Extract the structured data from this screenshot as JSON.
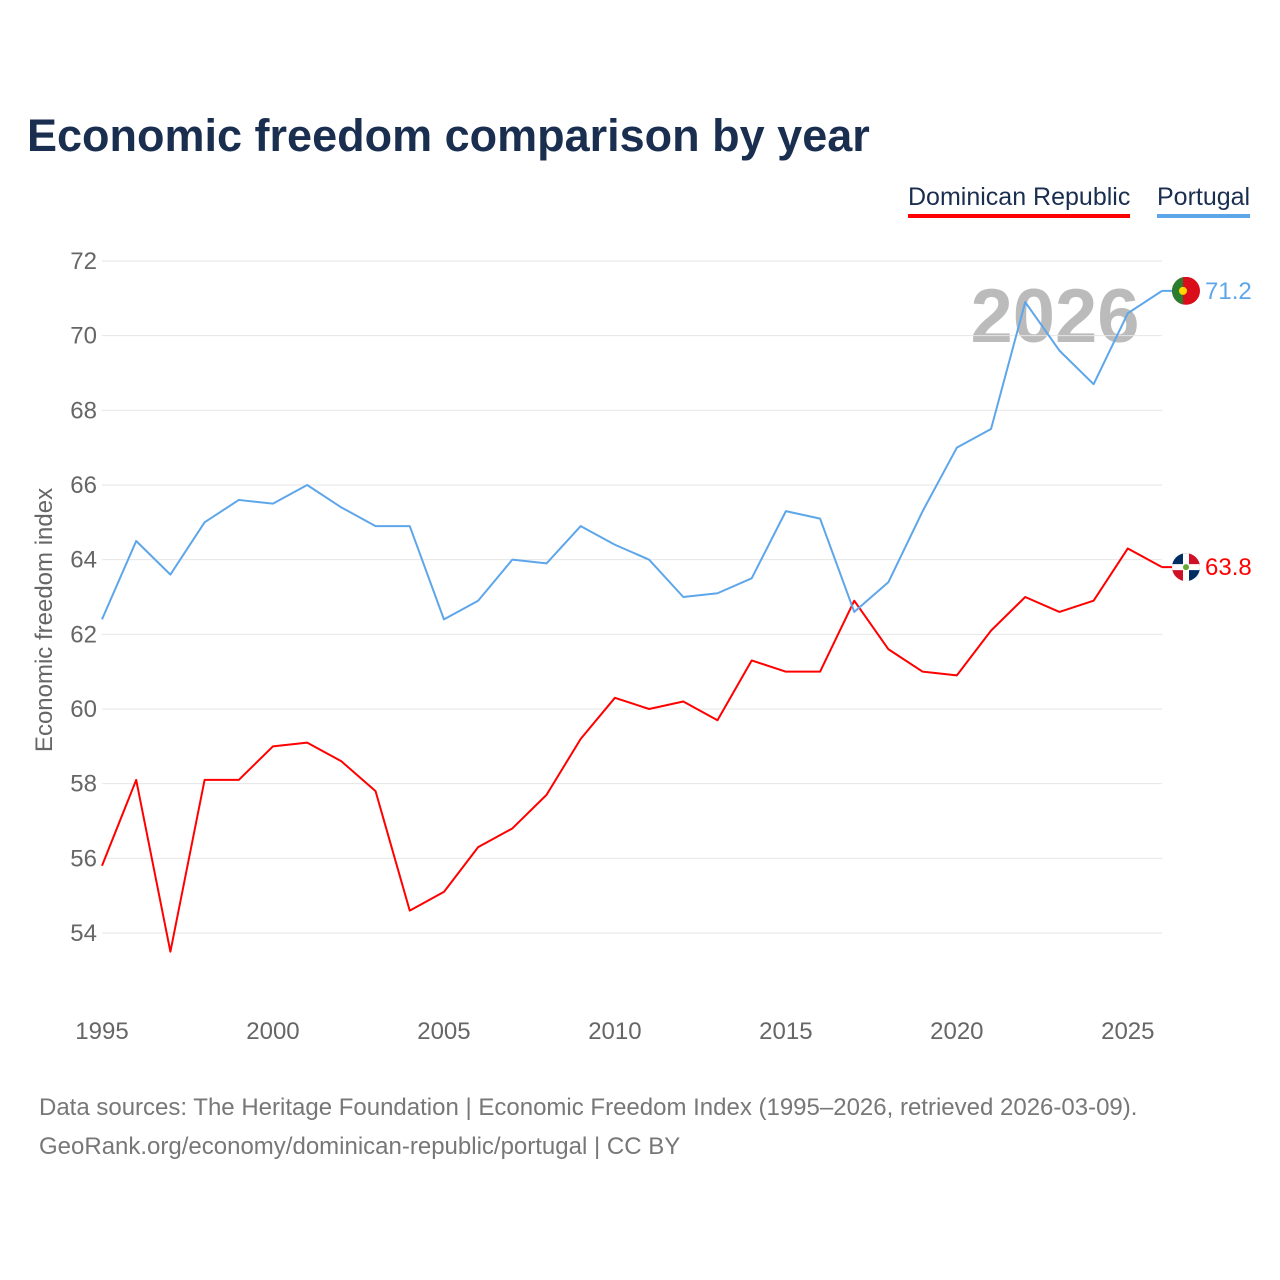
{
  "chart_data": {
    "type": "line",
    "title": "Economic freedom comparison by year",
    "xlabel": "",
    "ylabel": "Economic freedom index",
    "xlim": [
      1995,
      2026
    ],
    "ylim": [
      54,
      72
    ],
    "x_ticks": [
      1995,
      2000,
      2005,
      2010,
      2015,
      2020,
      2025
    ],
    "y_ticks": [
      54,
      56,
      58,
      60,
      62,
      64,
      66,
      68,
      70,
      72
    ],
    "grid": true,
    "legend_placement": "top-right",
    "watermark_year": "2026",
    "x": [
      1995,
      1996,
      1997,
      1998,
      1999,
      2000,
      2001,
      2002,
      2003,
      2004,
      2005,
      2006,
      2007,
      2008,
      2009,
      2010,
      2011,
      2012,
      2013,
      2014,
      2015,
      2016,
      2017,
      2018,
      2019,
      2020,
      2021,
      2022,
      2023,
      2024,
      2025,
      2026
    ],
    "series": [
      {
        "name": "Dominican Republic",
        "color": "#ff0000",
        "end_label": "63.8",
        "values": [
          55.8,
          58.1,
          53.5,
          58.1,
          58.1,
          59.0,
          59.1,
          58.6,
          57.8,
          54.6,
          55.1,
          56.3,
          56.8,
          57.7,
          59.2,
          60.3,
          60.0,
          60.2,
          59.7,
          61.3,
          61.0,
          61.0,
          62.9,
          61.6,
          61.0,
          60.9,
          62.1,
          63.0,
          62.6,
          62.9,
          64.3,
          63.8
        ]
      },
      {
        "name": "Portugal",
        "color": "#5ea6ea",
        "end_label": "71.2",
        "values": [
          62.4,
          64.5,
          63.6,
          65.0,
          65.6,
          65.5,
          66.0,
          65.4,
          64.9,
          64.9,
          62.4,
          62.9,
          64.0,
          63.9,
          64.9,
          64.4,
          64.0,
          63.0,
          63.1,
          63.5,
          65.3,
          65.1,
          62.6,
          63.4,
          65.3,
          67.0,
          67.5,
          70.9,
          69.6,
          68.7,
          70.6,
          71.2
        ]
      }
    ]
  },
  "footer": {
    "line1": "Data sources: The Heritage Foundation | Economic Freedom Index (1995–2026, retrieved 2026-03-09).",
    "line2": "GeoRank.org/economy/dominican-republic/portugal | CC BY"
  }
}
